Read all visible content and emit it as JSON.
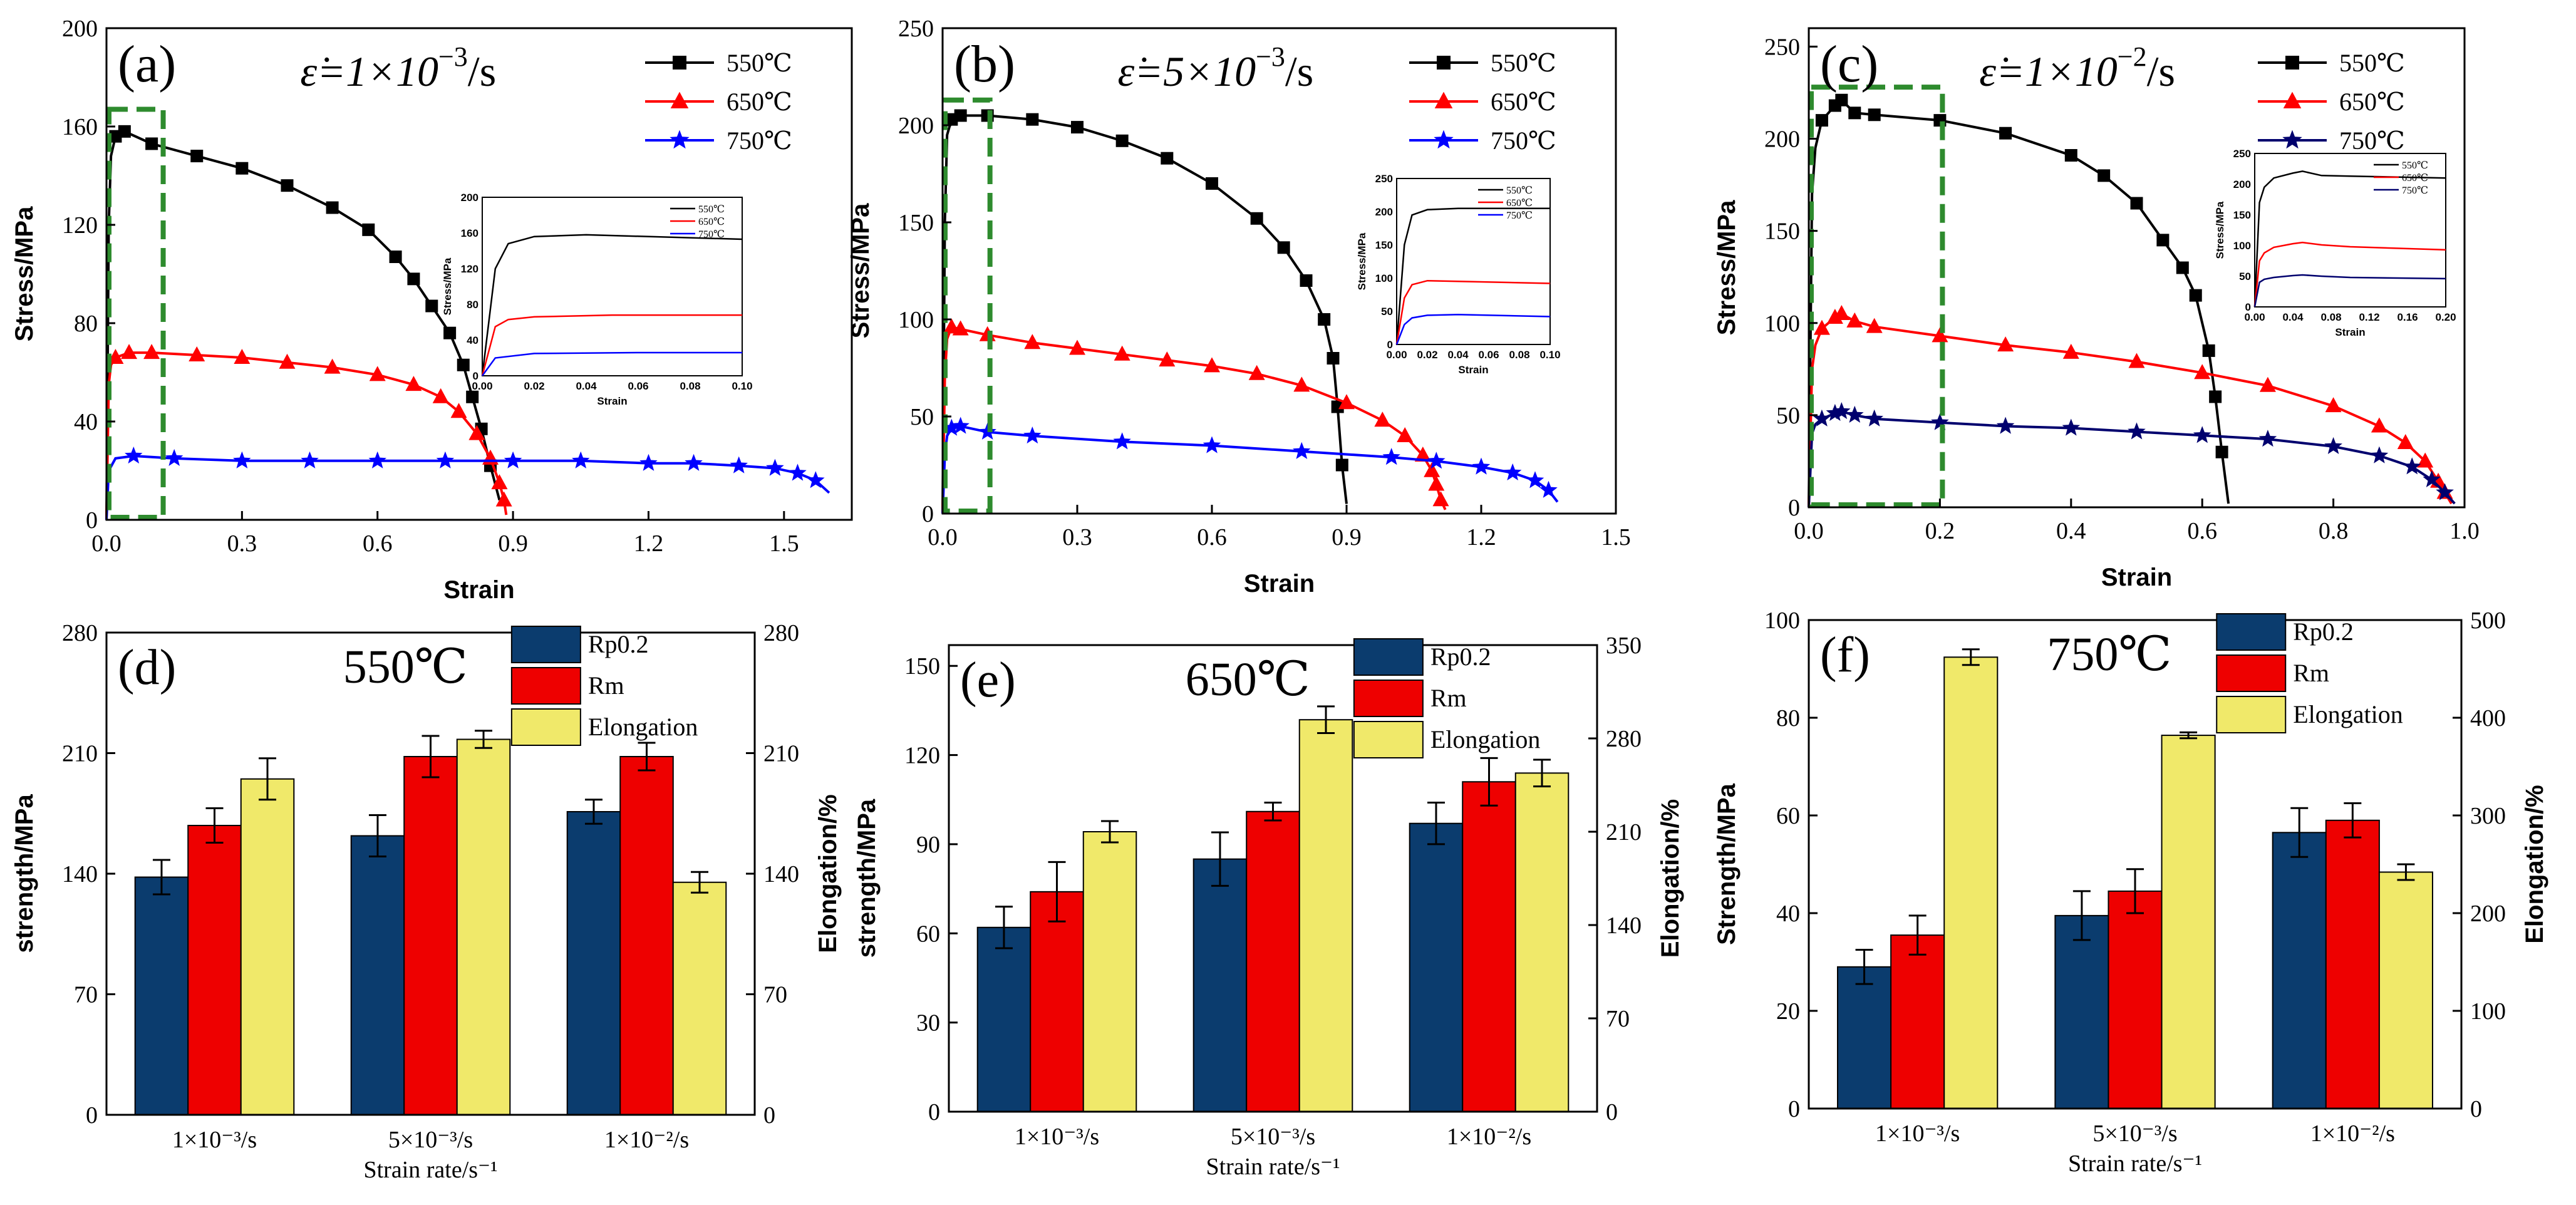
{
  "chart_data": [
    {
      "id": "a",
      "type": "line",
      "panel_label": "(a)",
      "rate_prefix": "ε̇=1×10",
      "rate_exp": "−3",
      "rate_suffix": "/s",
      "xlabel": "Strain",
      "ylabel": "Stress/MPa",
      "xlim": [
        0,
        1.65
      ],
      "ylim": [
        0,
        200
      ],
      "xticks": [
        0,
        0.3,
        0.6,
        0.9,
        1.2,
        1.5
      ],
      "xtick_labels": [
        "0.0",
        "0.3",
        "0.6",
        "0.9",
        "1.2",
        "1.5"
      ],
      "yticks": [
        0,
        40,
        80,
        120,
        160,
        200
      ],
      "ytick_labels": [
        "0",
        "40",
        "80",
        "120",
        "160",
        "200"
      ],
      "dashed_box": {
        "x0": 0.0,
        "x1": 0.12,
        "y0": 0,
        "y1": 167
      },
      "series": [
        {
          "name": "550℃",
          "color": "#000000",
          "marker": "square",
          "x": [
            0,
            0.005,
            0.01,
            0.02,
            0.04,
            0.1,
            0.2,
            0.3,
            0.4,
            0.5,
            0.58,
            0.64,
            0.68,
            0.72,
            0.76,
            0.79,
            0.81,
            0.83,
            0.85,
            0.87
          ],
          "y": [
            0,
            120,
            148,
            156,
            158,
            153,
            148,
            143,
            136,
            127,
            118,
            107,
            98,
            87,
            76,
            63,
            50,
            37,
            22,
            8
          ]
        },
        {
          "name": "650℃",
          "color": "#ff0000",
          "marker": "triangle",
          "x": [
            0,
            0.005,
            0.01,
            0.02,
            0.05,
            0.1,
            0.2,
            0.3,
            0.4,
            0.5,
            0.6,
            0.68,
            0.74,
            0.78,
            0.82,
            0.85,
            0.87,
            0.88,
            0.885
          ],
          "y": [
            0,
            55,
            63,
            66,
            68,
            68,
            67,
            66,
            64,
            62,
            59,
            55,
            50,
            44,
            35,
            25,
            15,
            8,
            2
          ]
        },
        {
          "name": "750℃",
          "color": "#0000ff",
          "marker": "star",
          "x": [
            0,
            0.005,
            0.02,
            0.06,
            0.15,
            0.3,
            0.45,
            0.6,
            0.75,
            0.9,
            1.05,
            1.2,
            1.3,
            1.4,
            1.48,
            1.53,
            1.57,
            1.6
          ],
          "y": [
            0,
            20,
            25,
            26,
            25,
            24,
            24,
            24,
            24,
            24,
            24,
            23,
            23,
            22,
            21,
            19,
            16,
            11
          ]
        }
      ],
      "inset": {
        "xlabel": "Strain",
        "ylabel": "Stress/MPa",
        "xlim": [
          0,
          0.1
        ],
        "ylim": [
          0,
          200
        ],
        "xtick_labels": [
          "0.00",
          "0.02",
          "0.04",
          "0.06",
          "0.08",
          "0.10"
        ],
        "ytick_labels": [
          "0",
          "40",
          "80",
          "120",
          "160",
          "200"
        ],
        "legend": [
          "550℃",
          "650℃",
          "750℃"
        ]
      }
    },
    {
      "id": "b",
      "type": "line",
      "panel_label": "(b)",
      "rate_prefix": "ε̇=5×10",
      "rate_exp": "−3",
      "rate_suffix": "/s",
      "xlabel": "Strain",
      "ylabel": "Stress/MPa",
      "xlim": [
        0,
        1.5
      ],
      "ylim": [
        0,
        250
      ],
      "xticks": [
        0,
        0.3,
        0.6,
        0.9,
        1.2,
        1.5
      ],
      "xtick_labels": [
        "0.0",
        "0.3",
        "0.6",
        "0.9",
        "1.2",
        "1.5"
      ],
      "yticks": [
        0,
        50,
        100,
        150,
        200,
        250
      ],
      "ytick_labels": [
        "0",
        "50",
        "100",
        "150",
        "200",
        "250"
      ],
      "dashed_box": {
        "x0": 0.0,
        "x1": 0.1,
        "y0": 0,
        "y1": 213
      },
      "series": [
        {
          "name": "550℃",
          "color": "#000000",
          "marker": "square",
          "x": [
            0,
            0.005,
            0.01,
            0.02,
            0.04,
            0.1,
            0.2,
            0.3,
            0.4,
            0.5,
            0.6,
            0.7,
            0.76,
            0.81,
            0.85,
            0.87,
            0.88,
            0.89,
            0.9
          ],
          "y": [
            0,
            150,
            195,
            203,
            205,
            205,
            203,
            199,
            192,
            183,
            170,
            152,
            137,
            120,
            100,
            80,
            55,
            25,
            5
          ]
        },
        {
          "name": "650℃",
          "color": "#ff0000",
          "marker": "triangle",
          "x": [
            0,
            0.005,
            0.01,
            0.02,
            0.04,
            0.1,
            0.2,
            0.3,
            0.4,
            0.5,
            0.6,
            0.7,
            0.8,
            0.9,
            0.98,
            1.03,
            1.07,
            1.09,
            1.1,
            1.11,
            1.12
          ],
          "y": [
            0,
            70,
            90,
            96,
            95,
            92,
            88,
            85,
            82,
            79,
            76,
            72,
            66,
            57,
            48,
            40,
            30,
            22,
            15,
            7,
            2
          ]
        },
        {
          "name": "750℃",
          "color": "#0000ff",
          "marker": "star",
          "x": [
            0,
            0.005,
            0.01,
            0.02,
            0.04,
            0.1,
            0.2,
            0.4,
            0.6,
            0.8,
            1.0,
            1.1,
            1.2,
            1.27,
            1.32,
            1.35,
            1.37
          ],
          "y": [
            0,
            30,
            40,
            44,
            45,
            42,
            40,
            37,
            35,
            32,
            29,
            27,
            24,
            21,
            17,
            12,
            6
          ]
        }
      ],
      "inset": {
        "xlabel": "Strain",
        "ylabel": "Stress/MPa",
        "xlim": [
          0,
          0.1
        ],
        "ylim": [
          0,
          250
        ],
        "xtick_labels": [
          "0.00",
          "0.02",
          "0.04",
          "0.06",
          "0.08",
          "0.10"
        ],
        "ytick_labels": [
          "0",
          "50",
          "100",
          "150",
          "200",
          "250"
        ],
        "legend": [
          "550℃",
          "650℃",
          "750℃"
        ]
      }
    },
    {
      "id": "c",
      "type": "line",
      "panel_label": "(c)",
      "rate_prefix": "ε̇=1×10",
      "rate_exp": "−2",
      "rate_suffix": "/s",
      "xlabel": "Strain",
      "ylabel": "Stress/MPa",
      "xlim": [
        0,
        1.0
      ],
      "ylim": [
        0,
        260
      ],
      "xticks": [
        0,
        0.2,
        0.4,
        0.6,
        0.8,
        1.0
      ],
      "xtick_labels": [
        "0.0",
        "0.2",
        "0.4",
        "0.6",
        "0.8",
        "1.0"
      ],
      "yticks": [
        0,
        50,
        100,
        150,
        200,
        250
      ],
      "ytick_labels": [
        "0",
        "50",
        "100",
        "150",
        "200",
        "250"
      ],
      "dashed_box": {
        "x0": 0.0,
        "x1": 0.2,
        "y0": 0,
        "y1": 228
      },
      "series": [
        {
          "name": "550℃",
          "color": "#000000",
          "marker": "square",
          "x": [
            0,
            0.005,
            0.01,
            0.02,
            0.04,
            0.05,
            0.07,
            0.1,
            0.2,
            0.3,
            0.4,
            0.45,
            0.5,
            0.54,
            0.57,
            0.59,
            0.61,
            0.62,
            0.63,
            0.64
          ],
          "y": [
            0,
            170,
            195,
            210,
            218,
            221,
            214,
            213,
            210,
            203,
            191,
            180,
            165,
            145,
            130,
            115,
            85,
            60,
            30,
            2
          ]
        },
        {
          "name": "650℃",
          "color": "#ff0000",
          "marker": "triangle",
          "x": [
            0,
            0.005,
            0.01,
            0.02,
            0.04,
            0.05,
            0.07,
            0.1,
            0.2,
            0.3,
            0.4,
            0.5,
            0.6,
            0.7,
            0.8,
            0.87,
            0.91,
            0.94,
            0.96,
            0.97,
            0.98
          ],
          "y": [
            0,
            75,
            88,
            97,
            103,
            105,
            101,
            98,
            93,
            88,
            84,
            79,
            73,
            66,
            55,
            44,
            35,
            25,
            14,
            8,
            2
          ]
        },
        {
          "name": "750℃",
          "color": "#00006e",
          "marker": "star",
          "x": [
            0,
            0.005,
            0.01,
            0.02,
            0.04,
            0.05,
            0.07,
            0.1,
            0.2,
            0.3,
            0.4,
            0.5,
            0.6,
            0.7,
            0.8,
            0.87,
            0.92,
            0.95,
            0.97,
            0.985
          ],
          "y": [
            0,
            40,
            45,
            48,
            51,
            52,
            50,
            48,
            46,
            44,
            43,
            41,
            39,
            37,
            33,
            28,
            22,
            15,
            8,
            2
          ]
        }
      ],
      "inset": {
        "xlabel": "Strain",
        "ylabel": "Stress/MPa",
        "xlim": [
          0,
          0.2
        ],
        "ylim": [
          0,
          250
        ],
        "xtick_labels": [
          "0.00",
          "0.04",
          "0.08",
          "0.12",
          "0.16",
          "0.20"
        ],
        "ytick_labels": [
          "0",
          "50",
          "100",
          "150",
          "200",
          "250"
        ],
        "legend": [
          "550℃",
          "650℃",
          "750℃"
        ]
      }
    },
    {
      "id": "d",
      "type": "bar",
      "panel_label": "(d)",
      "temperature": "550℃",
      "ylabel": "strength/MPa",
      "y2label": "Elongation/%",
      "xlabel": "Strain rate/s⁻¹",
      "ylim": [
        0,
        280
      ],
      "y2lim": [
        0,
        280
      ],
      "yticks": [
        0,
        70,
        140,
        210,
        280
      ],
      "ytick_labels": [
        "0",
        "70",
        "140",
        "210",
        "280"
      ],
      "y2ticks": [
        0,
        70,
        140,
        210,
        280
      ],
      "y2tick_labels": [
        "0",
        "70",
        "140",
        "210",
        "280"
      ],
      "categories": [
        "1×10⁻³/s",
        "5×10⁻³/s",
        "1×10⁻²/s"
      ],
      "series": [
        {
          "name": "Rp0.2",
          "color": "#0b3c6e",
          "axis": "left",
          "values": [
            138,
            162,
            176
          ],
          "errors": [
            10,
            12,
            7
          ]
        },
        {
          "name": "Rm",
          "color": "#ee0000",
          "axis": "left",
          "values": [
            168,
            208,
            208
          ],
          "errors": [
            10,
            12,
            8
          ]
        },
        {
          "name": "Elongation",
          "color": "#f0e96a",
          "axis": "right",
          "values": [
            195,
            218,
            135
          ],
          "errors": [
            12,
            5,
            6
          ]
        }
      ]
    },
    {
      "id": "e",
      "type": "bar",
      "panel_label": "(e)",
      "temperature": "650℃",
      "ylabel": "strength/MPa",
      "y2label": "Elongation/%",
      "xlabel": "Strain rate/s⁻¹",
      "ylim": [
        0,
        157
      ],
      "y2lim": [
        0,
        350
      ],
      "yticks": [
        0,
        30,
        60,
        90,
        120,
        150
      ],
      "ytick_labels": [
        "0",
        "30",
        "60",
        "90",
        "120",
        "150"
      ],
      "y2ticks": [
        0,
        70,
        140,
        210,
        280,
        350
      ],
      "y2tick_labels": [
        "0",
        "70",
        "140",
        "210",
        "280",
        "350"
      ],
      "categories": [
        "1×10⁻³/s",
        "5×10⁻³/s",
        "1×10⁻²/s"
      ],
      "series": [
        {
          "name": "Rp0.2",
          "color": "#0b3c6e",
          "axis": "left",
          "values": [
            62,
            85,
            97
          ],
          "errors": [
            7,
            9,
            7
          ]
        },
        {
          "name": "Rm",
          "color": "#ee0000",
          "axis": "left",
          "values": [
            74,
            101,
            111
          ],
          "errors": [
            10,
            3,
            8
          ]
        },
        {
          "name": "Elongation",
          "color": "#f0e96a",
          "axis": "right",
          "values": [
            210,
            294,
            254
          ],
          "errors": [
            8,
            10,
            10
          ]
        }
      ]
    },
    {
      "id": "f",
      "type": "bar",
      "panel_label": "(f)",
      "temperature": "750℃",
      "ylabel": "Strength/MPa",
      "y2label": "Elongation/%",
      "xlabel": "Strain rate/s⁻¹",
      "ylim": [
        0,
        100
      ],
      "y2lim": [
        0,
        500
      ],
      "yticks": [
        0,
        20,
        40,
        60,
        80,
        100
      ],
      "ytick_labels": [
        "0",
        "20",
        "40",
        "60",
        "80",
        "100"
      ],
      "y2ticks": [
        0,
        100,
        200,
        300,
        400,
        500
      ],
      "y2tick_labels": [
        "0",
        "100",
        "200",
        "300",
        "400",
        "500"
      ],
      "categories": [
        "1×10⁻³/s",
        "5×10⁻³/s",
        "1×10⁻²/s"
      ],
      "series": [
        {
          "name": "Rp0.2",
          "color": "#0b3c6e",
          "axis": "left",
          "values": [
            29,
            39.5,
            56.5
          ],
          "errors": [
            3.5,
            5,
            5
          ]
        },
        {
          "name": "Rm",
          "color": "#ee0000",
          "axis": "left",
          "values": [
            35.5,
            44.5,
            59
          ],
          "errors": [
            4,
            4.5,
            3.5
          ]
        },
        {
          "name": "Elongation",
          "color": "#f0e96a",
          "axis": "right",
          "values": [
            462,
            382,
            242
          ],
          "errors": [
            8,
            3,
            8
          ]
        }
      ]
    }
  ]
}
